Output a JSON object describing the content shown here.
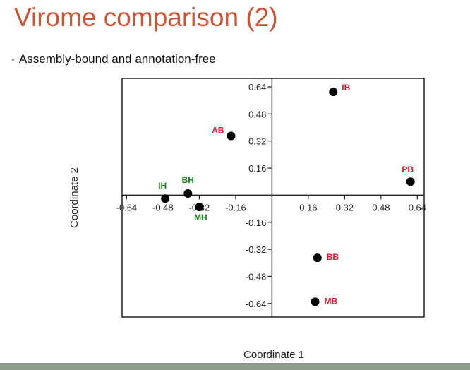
{
  "slide": {
    "title": "Virome comparison (2)",
    "bullet": "Assembly-bound and annotation-free"
  },
  "colors": {
    "title": "#c9553a",
    "label_red": "#e8102a",
    "label_green": "#1a7a1a",
    "point": "#000000",
    "footer": "#8e9c8c"
  },
  "chart_data": {
    "type": "scatter",
    "title": "",
    "xlabel": "Coordinate 1",
    "ylabel": "Coordinate 2",
    "xlim": [
      -0.66,
      0.67
    ],
    "ylim": [
      -0.72,
      0.69
    ],
    "xticks": [
      -0.64,
      -0.48,
      -0.32,
      -0.16,
      0.16,
      0.32,
      0.48,
      0.64
    ],
    "xtick_labels": [
      "-0.64",
      "-0.48",
      "-0.32",
      "-0.16",
      "0.16",
      "0.32",
      "0.48",
      "0.64"
    ],
    "yticks": [
      0.64,
      0.48,
      0.32,
      0.16,
      -0.16,
      -0.32,
      -0.48,
      -0.64
    ],
    "ytick_labels": [
      "0.64",
      "0.48",
      "0.32",
      "0.16",
      "-0.16",
      "-0.32",
      "-0.48",
      "-0.64"
    ],
    "grid": false,
    "points": [
      {
        "label": "IB",
        "x": 0.27,
        "y": 0.61,
        "group": "red"
      },
      {
        "label": "AB",
        "x": -0.18,
        "y": 0.35,
        "group": "red"
      },
      {
        "label": "PB",
        "x": 0.61,
        "y": 0.08,
        "group": "red"
      },
      {
        "label": "BH",
        "x": -0.37,
        "y": 0.01,
        "group": "green"
      },
      {
        "label": "IH",
        "x": -0.47,
        "y": -0.02,
        "group": "green"
      },
      {
        "label": "MH",
        "x": -0.32,
        "y": -0.07,
        "group": "green"
      },
      {
        "label": "BB",
        "x": 0.2,
        "y": -0.37,
        "group": "red"
      },
      {
        "label": "MB",
        "x": 0.19,
        "y": -0.63,
        "group": "red"
      }
    ]
  }
}
